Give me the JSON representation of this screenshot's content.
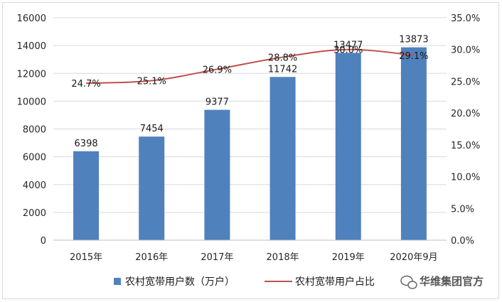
{
  "chart_data": {
    "type": "bar",
    "categories": [
      "2015年",
      "2016年",
      "2017年",
      "2018年",
      "2019年",
      "2020年9月"
    ],
    "series": [
      {
        "name": "农村宽带用户数（万户）",
        "type": "bar",
        "axis": "left",
        "values": [
          6398,
          7454,
          9377,
          11742,
          13477,
          13873
        ],
        "labels": [
          "6398",
          "7454",
          "9377",
          "11742",
          "13477",
          "13873"
        ]
      },
      {
        "name": "农村宽带用户占比",
        "type": "line",
        "axis": "right",
        "values": [
          24.7,
          25.1,
          26.9,
          28.8,
          30.0,
          29.1
        ],
        "labels": [
          "24.7%",
          "25.1%",
          "26.9%",
          "28.8%",
          "30.0%",
          "29.1%"
        ]
      }
    ],
    "ylim_left": [
      0,
      16000
    ],
    "ylim_right": [
      0,
      35
    ],
    "left_ticks": [
      "0",
      "2000",
      "4000",
      "6000",
      "8000",
      "10000",
      "12000",
      "14000",
      "16000"
    ],
    "right_ticks": [
      "0.0%",
      "5.0%",
      "10.0%",
      "15.0%",
      "20.0%",
      "25.0%",
      "30.0%",
      "35.0%"
    ],
    "grid": true,
    "legend_position": "bottom",
    "colors": {
      "bar": "#4f81bd",
      "line": "#c0504d",
      "grid": "#d9d9d9"
    }
  },
  "watermark": {
    "text": "华维集团官方",
    "icon": "wechat-icon"
  }
}
